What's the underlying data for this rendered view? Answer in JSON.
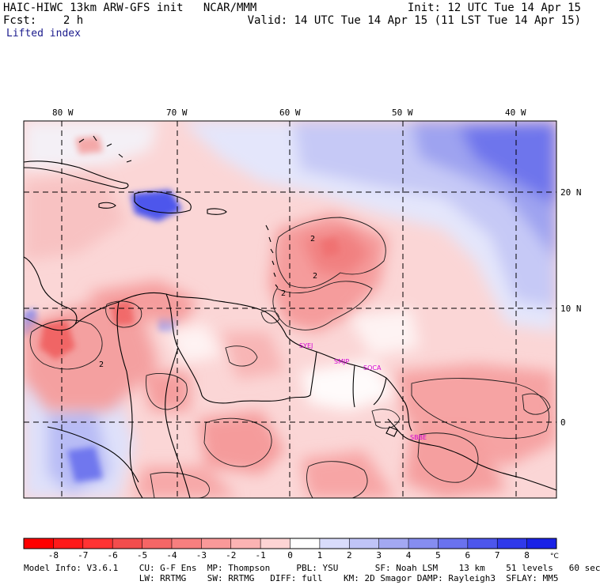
{
  "header": {
    "model_title": "HAIC-HIWC 13km ARW-GFS init   NCAR/MMM",
    "forecast": "Fcst:    2 h",
    "init": "Init: 12 UTC Tue 14 Apr 15",
    "valid": "Valid: 14 UTC Tue 14 Apr 15 (11 LST Tue 14 Apr 15)",
    "field": "Lifted index"
  },
  "map": {
    "lon_labels": [
      "80 W",
      "70 W",
      "60 W",
      "50 W",
      "40 W"
    ],
    "lat_labels": [
      "20 N",
      "10 N",
      "0"
    ],
    "stations": [
      "SYEJ",
      "SMJP",
      "SOCA",
      "SBBE"
    ],
    "contour_labels": [
      "2",
      "2",
      "2",
      "2"
    ]
  },
  "colorbar": {
    "ticks": [
      "-8",
      "-7",
      "-6",
      "-5",
      "-4",
      "-3",
      "-2",
      "-1",
      "0",
      "1",
      "2",
      "3",
      "4",
      "5",
      "6",
      "7",
      "8"
    ],
    "unit": "°C",
    "colors": [
      "#ff1a1a",
      "#ff3333",
      "#f24d4d",
      "#f56666",
      "#f77f7f",
      "#f99999",
      "#fbb3b3",
      "#fdd4d4",
      "#ffffff",
      "#d9dcfb",
      "#c0c4f7",
      "#a3a8f2",
      "#868df0",
      "#6a72ee",
      "#4d56ec",
      "#3039ea",
      "#1a22e6"
    ]
  },
  "model_info": {
    "line1": "Model Info: V3.6.1    CU: G-F Ens  MP: Thompson     PBL: YSU       SF: Noah LSM    13 km    51 levels   60 sec",
    "line2": "                      LW: RRTMG    SW: RRTMG   DIFF: full    KM: 2D Smagor DAMP: Rayleigh3  SFLAY: MM5"
  }
}
